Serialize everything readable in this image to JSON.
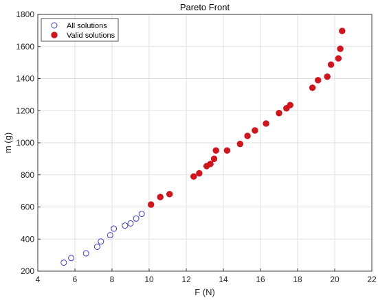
{
  "chart_data": {
    "type": "scatter",
    "title": "Pareto Front",
    "xlabel": "F (N)",
    "ylabel": "m (g)",
    "xlim": [
      4,
      22
    ],
    "ylim": [
      200,
      1800
    ],
    "xticks": [
      4,
      6,
      8,
      10,
      12,
      14,
      16,
      18,
      20,
      22
    ],
    "yticks": [
      200,
      400,
      600,
      800,
      1000,
      1200,
      1400,
      1600,
      1800
    ],
    "grid": true,
    "legend_position": "top-left",
    "series": [
      {
        "name": "All solutions",
        "marker": "open-circle",
        "color": "#3b3bd6",
        "points": [
          [
            5.4,
            253
          ],
          [
            5.8,
            282
          ],
          [
            6.6,
            311
          ],
          [
            7.2,
            352
          ],
          [
            7.4,
            385
          ],
          [
            7.9,
            424
          ],
          [
            8.1,
            465
          ],
          [
            8.7,
            484
          ],
          [
            9.0,
            498
          ],
          [
            9.3,
            528
          ],
          [
            9.6,
            557
          ],
          [
            10.1,
            615
          ],
          [
            10.6,
            662
          ],
          [
            11.1,
            680
          ],
          [
            12.4,
            790
          ],
          [
            12.7,
            810
          ],
          [
            13.1,
            855
          ],
          [
            13.3,
            868
          ],
          [
            13.5,
            900
          ],
          [
            13.6,
            952
          ],
          [
            14.2,
            952
          ],
          [
            14.9,
            993
          ],
          [
            15.3,
            1043
          ],
          [
            15.7,
            1077
          ],
          [
            16.3,
            1120
          ],
          [
            17.0,
            1185
          ],
          [
            17.4,
            1215
          ],
          [
            17.6,
            1235
          ],
          [
            18.8,
            1343
          ],
          [
            19.1,
            1390
          ],
          [
            19.6,
            1412
          ],
          [
            19.8,
            1487
          ],
          [
            20.2,
            1526
          ],
          [
            20.3,
            1586
          ],
          [
            20.4,
            1697
          ]
        ]
      },
      {
        "name": "Valid solutions",
        "marker": "filled-circle",
        "color": "#d3141d",
        "points": [
          [
            10.1,
            615
          ],
          [
            10.6,
            662
          ],
          [
            11.1,
            680
          ],
          [
            12.4,
            790
          ],
          [
            12.7,
            810
          ],
          [
            13.1,
            855
          ],
          [
            13.3,
            868
          ],
          [
            13.5,
            900
          ],
          [
            13.6,
            952
          ],
          [
            14.2,
            952
          ],
          [
            14.9,
            993
          ],
          [
            15.3,
            1043
          ],
          [
            15.7,
            1077
          ],
          [
            16.3,
            1120
          ],
          [
            17.0,
            1185
          ],
          [
            17.4,
            1215
          ],
          [
            17.6,
            1235
          ],
          [
            18.8,
            1343
          ],
          [
            19.1,
            1390
          ],
          [
            19.6,
            1412
          ],
          [
            19.8,
            1487
          ],
          [
            20.2,
            1526
          ],
          [
            20.3,
            1586
          ],
          [
            20.4,
            1697
          ]
        ]
      }
    ]
  }
}
